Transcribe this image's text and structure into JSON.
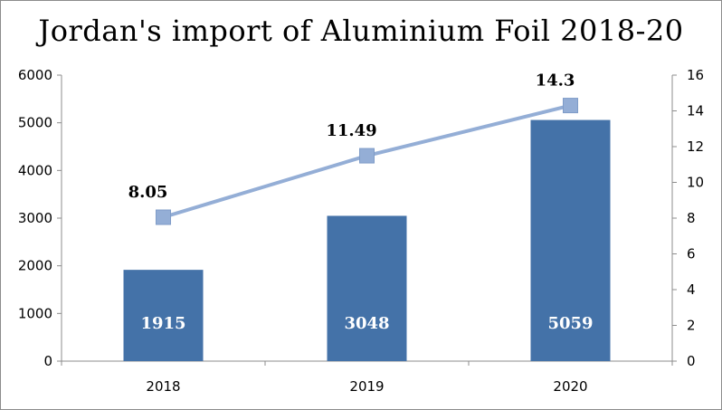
{
  "chart_data": {
    "type": "bar+line",
    "title": "Jordan's import of Aluminium Foil 2018-20",
    "categories": [
      "2018",
      "2019",
      "2020"
    ],
    "bar_series": {
      "values": [
        1915,
        3048,
        5059
      ],
      "axis": "left",
      "color": "#4472a8"
    },
    "line_series": {
      "values": [
        8.05,
        11.49,
        14.3
      ],
      "labels": [
        "8.05",
        "11.49",
        "14.3"
      ],
      "axis": "right",
      "color": "#94aed6"
    },
    "left_axis": {
      "ylim": [
        0,
        6000
      ],
      "ticks": [
        "0",
        "1000",
        "2000",
        "3000",
        "4000",
        "5000",
        "6000"
      ]
    },
    "right_axis": {
      "ylim": [
        0,
        16
      ],
      "ticks": [
        "0",
        "2",
        "4",
        "6",
        "8",
        "10",
        "12",
        "14",
        "16"
      ]
    },
    "grid": false,
    "legend": "none"
  }
}
